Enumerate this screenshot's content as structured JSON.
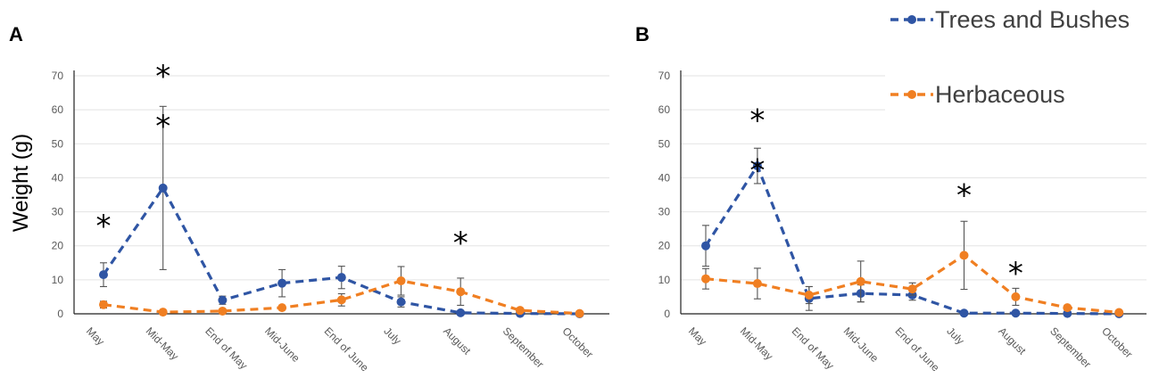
{
  "colors": {
    "trees": "#2f55a4",
    "herb": "#f07f22",
    "grid": "#e3e3e3",
    "axis": "#222222"
  },
  "ylabel": "Weight (g)",
  "legend": [
    {
      "name": "Trees and Bushes",
      "color": "#2f55a4"
    },
    {
      "name": "Herbaceous",
      "color": "#f07f22"
    }
  ],
  "chart_data": [
    {
      "panel": "A",
      "type": "line",
      "categories": [
        "May",
        "Mid-May",
        "End of May",
        "Mid-June",
        "End of June",
        "July",
        "August",
        "September",
        "October"
      ],
      "ylim": [
        0,
        70
      ],
      "yticks": [
        0,
        10,
        20,
        30,
        40,
        50,
        60,
        70
      ],
      "series": [
        {
          "name": "Trees and Bushes",
          "values": [
            11.5,
            37,
            4,
            9,
            10.7,
            3.5,
            0.3,
            0.1,
            0
          ],
          "errors": [
            3.5,
            24,
            1.2,
            4,
            3.3,
            1.5,
            0.3,
            0.1,
            0
          ]
        },
        {
          "name": "Herbaceous",
          "values": [
            2.7,
            0.5,
            0.8,
            1.8,
            4.1,
            9.7,
            6.5,
            1.0,
            0.1
          ],
          "errors": [
            1.0,
            0.2,
            0.3,
            0.4,
            1.8,
            4.2,
            4.0,
            0.4,
            0.1
          ]
        }
      ],
      "significance": [
        {
          "category": "May",
          "stars": 1,
          "y": 26
        },
        {
          "category": "Mid-May",
          "stars": 2,
          "y": 70
        },
        {
          "category": "August",
          "stars": 1,
          "y": 21
        }
      ]
    },
    {
      "panel": "B",
      "type": "line",
      "categories": [
        "May",
        "Mid-May",
        "End of May",
        "Mid-June",
        "End of June",
        "July",
        "August",
        "September",
        "October"
      ],
      "ylim": [
        0,
        70
      ],
      "yticks": [
        0,
        10,
        20,
        30,
        40,
        50,
        60,
        70
      ],
      "series": [
        {
          "name": "Trees and Bushes",
          "values": [
            20,
            43.5,
            4.5,
            6,
            5.5,
            0.2,
            0.2,
            0.1,
            0
          ],
          "errors": [
            6,
            5.2,
            3.5,
            2.5,
            1.5,
            0.2,
            0.2,
            0.1,
            0
          ]
        },
        {
          "name": "Herbaceous",
          "values": [
            10.3,
            8.9,
            5.5,
            9.5,
            7.3,
            17.2,
            5.0,
            1.8,
            0.4
          ],
          "errors": [
            3.0,
            4.5,
            2.5,
            6.0,
            1.8,
            10.0,
            2.5,
            0.6,
            0.2
          ]
        }
      ],
      "significance": [
        {
          "category": "Mid-May",
          "stars": 2,
          "y": 57
        },
        {
          "category": "July",
          "stars": 1,
          "y": 35
        },
        {
          "category": "August",
          "stars": 1,
          "y": 12
        }
      ]
    }
  ]
}
